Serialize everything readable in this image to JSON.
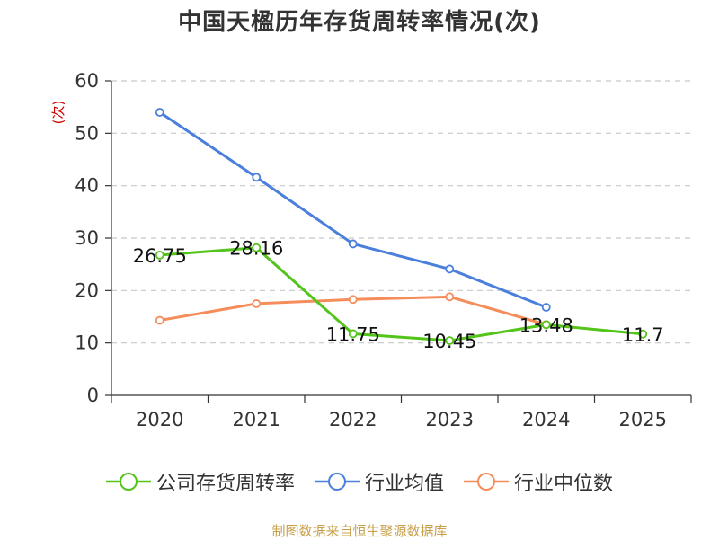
{
  "chart_data": {
    "type": "line",
    "title": "中国天楹历年存货周转率情况(次)",
    "ylabel": "(次)",
    "xlabel": "",
    "categories": [
      "2020",
      "2021",
      "2022",
      "2023",
      "2024",
      "2025"
    ],
    "ylim": [
      0,
      60
    ],
    "yticks": [
      0,
      10,
      20,
      30,
      40,
      50,
      60
    ],
    "grid": true,
    "legend_position": "bottom",
    "series": [
      {
        "name": "公司存货周转率",
        "color": "#52c41a",
        "values": [
          26.75,
          28.16,
          11.75,
          10.45,
          13.48,
          11.7
        ],
        "data_labels": [
          "26.75",
          "28.16",
          "11.75",
          "10.45",
          "13.48",
          "11.7"
        ]
      },
      {
        "name": "行业均值",
        "color": "#4a7fdc",
        "values": [
          54,
          41.6,
          28.9,
          24.1,
          16.8,
          null
        ]
      },
      {
        "name": "行业中位数",
        "color": "#f58d5a",
        "values": [
          14.3,
          17.5,
          18.3,
          18.8,
          13.5,
          null
        ]
      }
    ]
  },
  "source_text": "制图数据来自恒生聚源数据库"
}
